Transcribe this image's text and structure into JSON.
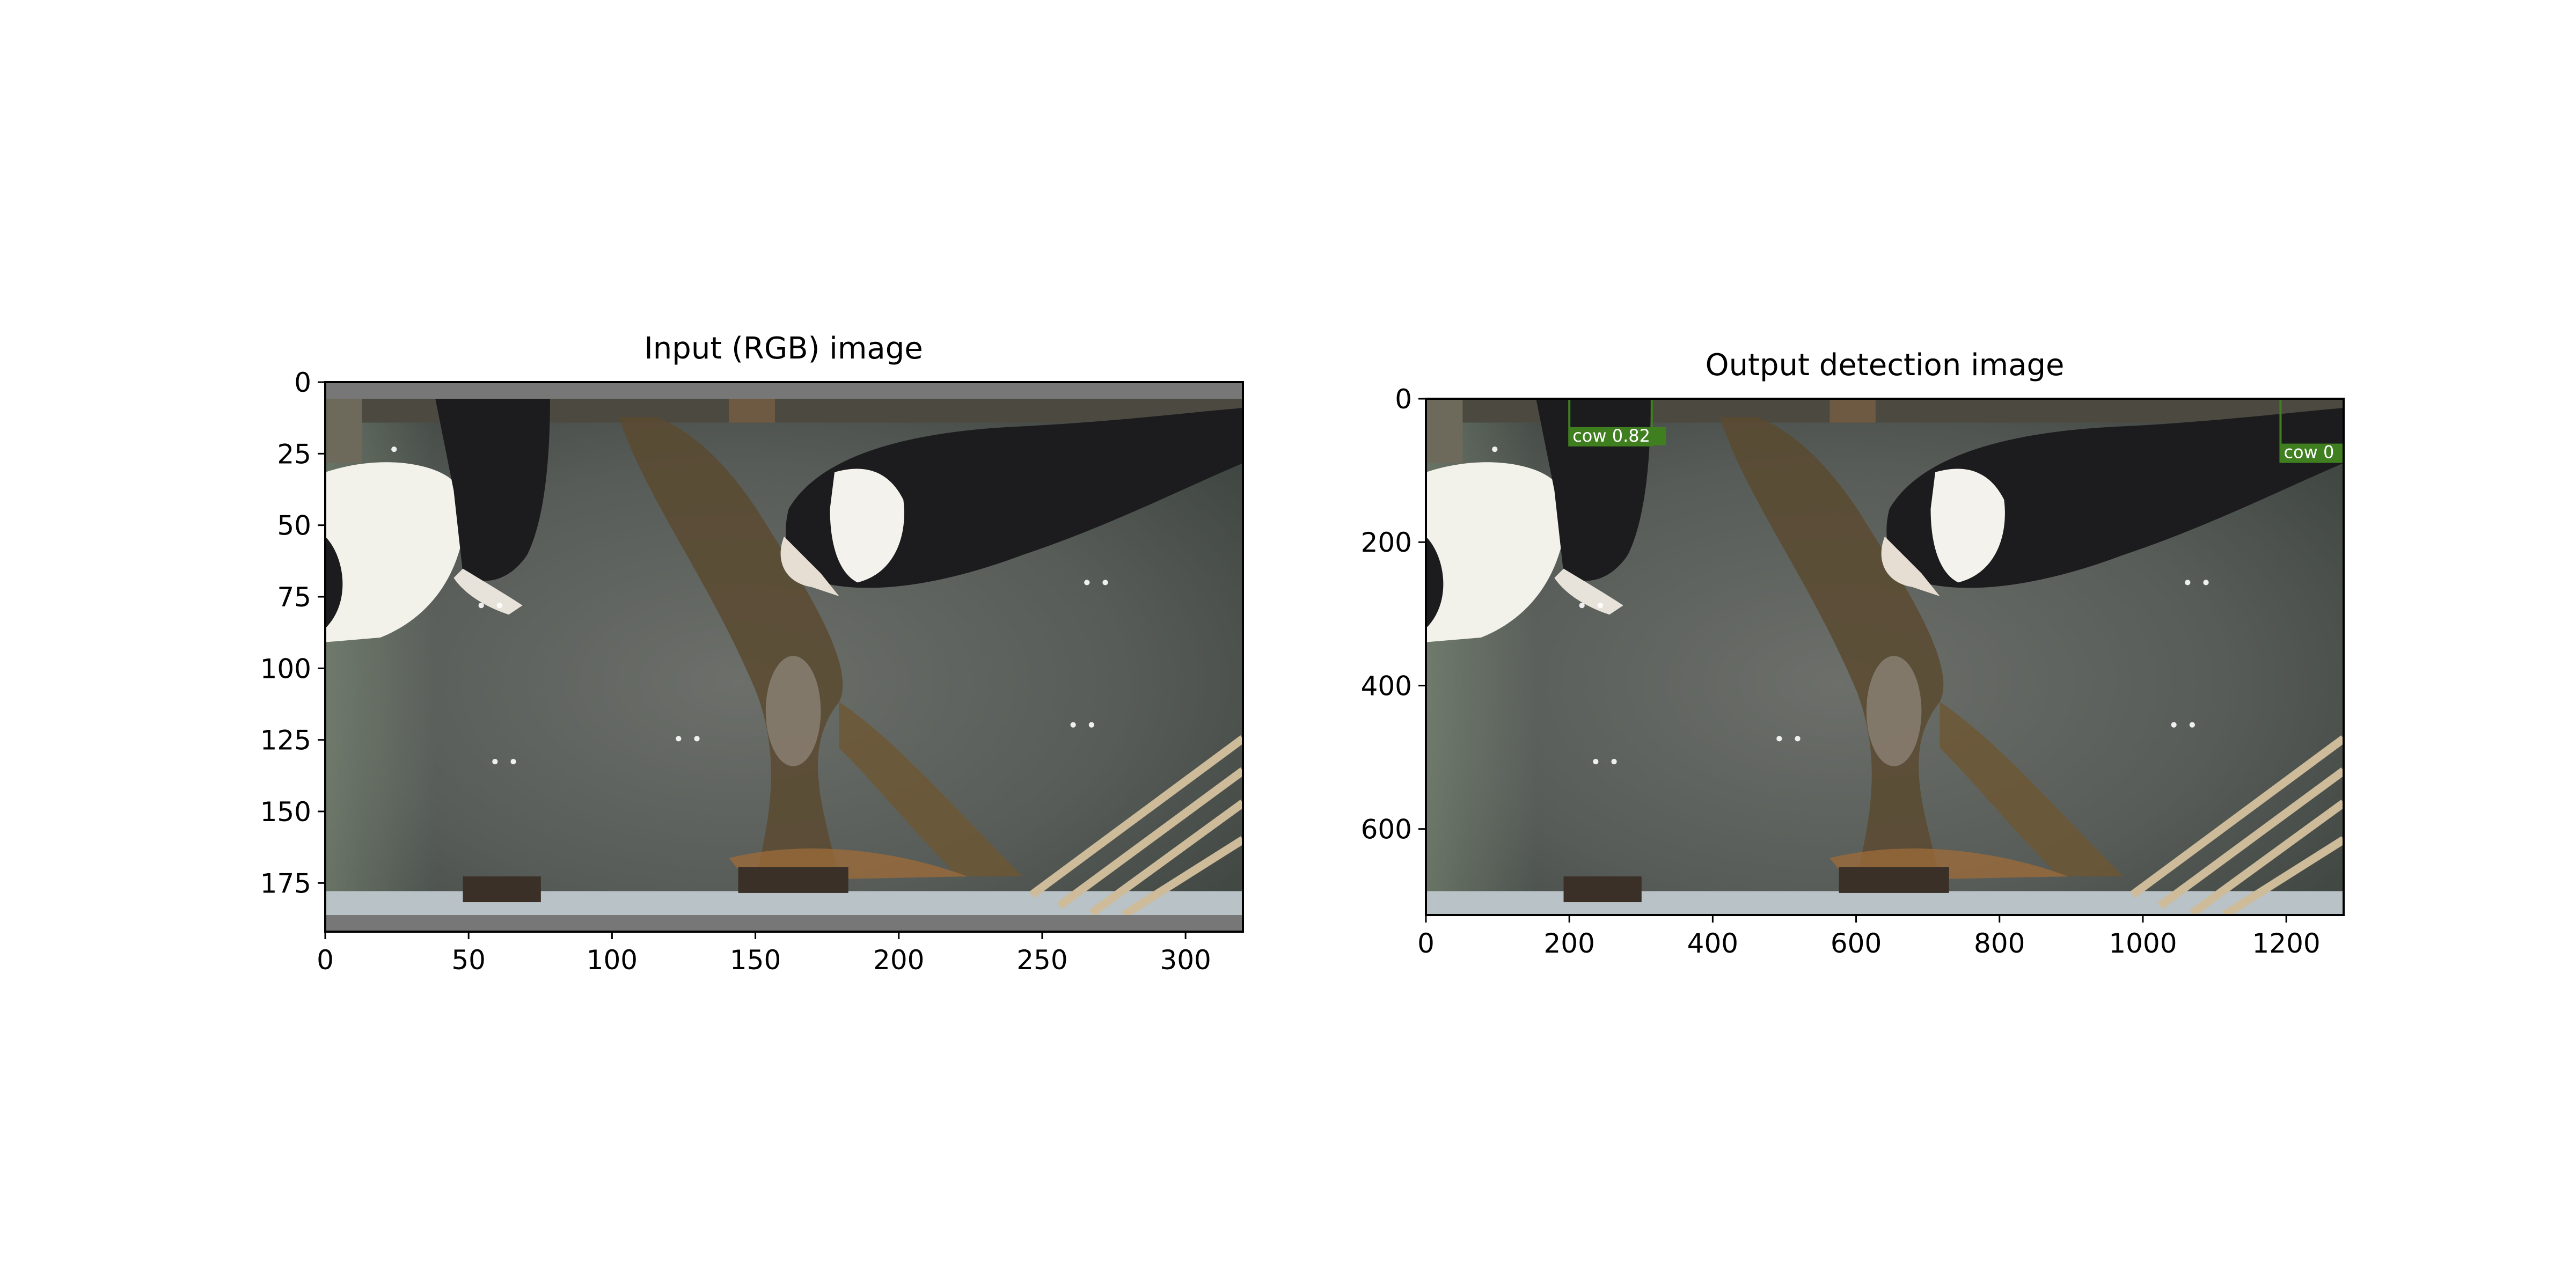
{
  "chart_data": [
    {
      "type": "image",
      "title": "Input (RGB) image",
      "xlim": [
        0,
        320
      ],
      "ylim": [
        192,
        0
      ],
      "xticks": [
        0,
        50,
        100,
        150,
        200,
        250,
        300
      ],
      "yticks": [
        0,
        25,
        50,
        75,
        100,
        125,
        150,
        175
      ],
      "xlabel": "",
      "ylabel": "",
      "content": "overhead camera view of cows in a barn, padded with grey bars top and bottom"
    },
    {
      "type": "image",
      "title": "Output detection image",
      "xlim": [
        0,
        1280
      ],
      "ylim": [
        720,
        0
      ],
      "xticks": [
        0,
        200,
        400,
        600,
        800,
        1000,
        1200
      ],
      "yticks": [
        0,
        200,
        400,
        600
      ],
      "xlabel": "",
      "ylabel": "",
      "content": "same barn scene with detection boxes",
      "detections": [
        {
          "label": "cow 0.82",
          "x0": 200,
          "y0": 0,
          "x1": 315,
          "y1": 65
        },
        {
          "label": "cow 0",
          "x0": 1192,
          "y0": 0,
          "x1": 1280,
          "y1": 88
        }
      ]
    }
  ],
  "colors": {
    "axis": "#000000",
    "pad_grey": "#777777",
    "detection_box": "#3f7f1f",
    "detection_text": "#ffffff",
    "floor": "#5e625e",
    "cow_black": "#1c1c1e",
    "cow_white": "#f2f1ea"
  }
}
